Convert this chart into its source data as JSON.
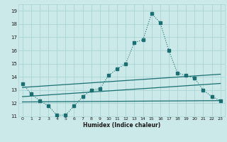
{
  "xlabel": "Humidex (Indice chaleur)",
  "ylabel": "",
  "xlim": [
    -0.5,
    23.5
  ],
  "ylim": [
    11,
    19.5
  ],
  "yticks": [
    11,
    12,
    13,
    14,
    15,
    16,
    17,
    18,
    19
  ],
  "xticks": [
    0,
    1,
    2,
    3,
    4,
    5,
    6,
    7,
    8,
    9,
    10,
    11,
    12,
    13,
    14,
    15,
    16,
    17,
    18,
    19,
    20,
    21,
    22,
    23
  ],
  "bg_color": "#cce9e9",
  "grid_color": "#aad4d4",
  "line_color": "#1a7070",
  "main_line": {
    "x": [
      0,
      1,
      2,
      3,
      4,
      5,
      6,
      7,
      8,
      9,
      10,
      11,
      12,
      13,
      14,
      15,
      16,
      17,
      18,
      19,
      20,
      21,
      22,
      23
    ],
    "y": [
      13.5,
      12.7,
      12.2,
      11.8,
      11.1,
      11.1,
      11.8,
      12.5,
      13.0,
      13.1,
      14.1,
      14.6,
      15.0,
      16.6,
      16.8,
      18.8,
      18.1,
      16.0,
      14.3,
      14.1,
      13.9,
      13.0,
      12.5,
      12.2
    ]
  },
  "upper_line": {
    "x": [
      0,
      23
    ],
    "y": [
      13.2,
      14.2
    ]
  },
  "lower_line": {
    "x": [
      0,
      23
    ],
    "y": [
      12.1,
      12.2
    ]
  },
  "mid_line": {
    "x": [
      0,
      23
    ],
    "y": [
      12.5,
      13.5
    ]
  }
}
